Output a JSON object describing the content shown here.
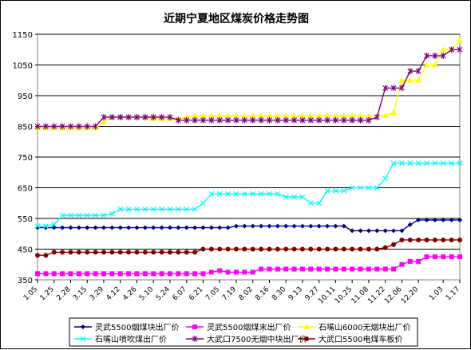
{
  "chart_data": {
    "type": "line",
    "title": "近期宁夏地区煤炭价格走势图",
    "ylim": [
      350,
      1150
    ],
    "yticks": [
      350,
      450,
      550,
      650,
      750,
      850,
      950,
      1050,
      1150
    ],
    "grid": true,
    "legend_position": "bottom",
    "x": [
      "1.05",
      "1.15",
      "1.25",
      "2.05",
      "2.28",
      "3.08",
      "3.15",
      "3.22",
      "3.29",
      "4.05",
      "4.12",
      "4.19",
      "4.26",
      "5.03",
      "5.10",
      "5.17",
      "5.24",
      "5.31",
      "6.07",
      "6.14",
      "6.21",
      "6.28",
      "7.05",
      "7.12",
      "7.19",
      "7.26",
      "8.02",
      "8.09",
      "8.16",
      "8.23",
      "8.30",
      "9.06",
      "9.13",
      "9.20",
      "9.27",
      "10.04",
      "10.11",
      "10.18",
      "10.25",
      "11.01",
      "11.08",
      "11.15",
      "11.22",
      "11.29",
      "12.06",
      "12.13",
      "12.20",
      "12.27",
      "12.30",
      "1.03",
      "1.10",
      "1.17"
    ],
    "xtick_labels": [
      "1.05",
      "1.25",
      "2.28",
      "3.15",
      "3.29",
      "4.12",
      "4.26",
      "5.10",
      "5.24",
      "6.07",
      "6.21",
      "7.05",
      "7.19",
      "8.02",
      "8.16",
      "8.30",
      "9.13",
      "9.27",
      "10.11",
      "10.25",
      "11.08",
      "11.22",
      "12.06",
      "12.20",
      "1.03",
      "1.17"
    ],
    "series": [
      {
        "name": "灵武5500烟煤块出厂价",
        "color": "#000080",
        "marker": "diamond",
        "values": [
          520,
          520,
          520,
          520,
          520,
          520,
          520,
          520,
          520,
          520,
          520,
          520,
          520,
          520,
          520,
          520,
          520,
          520,
          520,
          520,
          520,
          520,
          520,
          520,
          525,
          525,
          525,
          525,
          525,
          525,
          525,
          525,
          525,
          525,
          525,
          525,
          525,
          525,
          510,
          510,
          510,
          510,
          510,
          510,
          510,
          530,
          545,
          545,
          545,
          545,
          545,
          545
        ]
      },
      {
        "name": "灵武5500烟煤末出厂价",
        "color": "#ff00ff",
        "marker": "square",
        "values": [
          370,
          370,
          370,
          370,
          370,
          370,
          370,
          370,
          370,
          370,
          370,
          370,
          370,
          370,
          370,
          370,
          370,
          370,
          370,
          370,
          370,
          375,
          380,
          375,
          375,
          375,
          375,
          385,
          385,
          385,
          385,
          385,
          385,
          385,
          385,
          385,
          385,
          385,
          385,
          385,
          385,
          385,
          385,
          385,
          400,
          410,
          410,
          425,
          425,
          425,
          425,
          425
        ]
      },
      {
        "name": "石嘴山6000无烟块出厂价",
        "color": "#ffff00",
        "marker": "triangle",
        "values": [
          845,
          845,
          845,
          845,
          845,
          845,
          845,
          845,
          865,
          880,
          880,
          880,
          880,
          880,
          875,
          875,
          875,
          875,
          880,
          885,
          885,
          885,
          885,
          885,
          885,
          885,
          885,
          885,
          885,
          885,
          885,
          885,
          885,
          885,
          885,
          885,
          885,
          885,
          885,
          885,
          885,
          885,
          885,
          895,
          1000,
          1000,
          1000,
          1050,
          1050,
          1100,
          1100,
          1130
        ]
      },
      {
        "name": "石嘴山喷吹煤出厂价",
        "color": "#00ffff",
        "marker": "cross",
        "values": [
          525,
          525,
          530,
          560,
          560,
          560,
          560,
          560,
          560,
          565,
          580,
          580,
          580,
          580,
          580,
          580,
          580,
          580,
          580,
          580,
          600,
          630,
          630,
          630,
          630,
          630,
          630,
          630,
          630,
          630,
          620,
          620,
          620,
          600,
          600,
          640,
          640,
          640,
          650,
          650,
          650,
          650,
          680,
          730,
          730,
          730,
          730,
          730,
          730,
          730,
          730,
          730
        ]
      },
      {
        "name": "大武口7500无烟中块出厂价",
        "color": "#800080",
        "marker": "star",
        "values": [
          850,
          850,
          850,
          850,
          850,
          850,
          850,
          850,
          880,
          880,
          880,
          880,
          880,
          880,
          880,
          880,
          880,
          870,
          870,
          870,
          870,
          870,
          870,
          870,
          870,
          870,
          870,
          870,
          870,
          870,
          870,
          870,
          870,
          870,
          870,
          870,
          870,
          870,
          870,
          870,
          870,
          880,
          975,
          975,
          975,
          1030,
          1030,
          1080,
          1080,
          1080,
          1100,
          1100
        ]
      },
      {
        "name": "大武口5500电煤车板价",
        "color": "#800000",
        "marker": "circle",
        "values": [
          430,
          430,
          440,
          440,
          440,
          440,
          440,
          440,
          440,
          440,
          440,
          440,
          440,
          440,
          440,
          440,
          440,
          440,
          440,
          440,
          450,
          450,
          450,
          450,
          450,
          450,
          450,
          450,
          450,
          450,
          450,
          450,
          450,
          450,
          450,
          450,
          450,
          450,
          450,
          450,
          450,
          450,
          455,
          465,
          480,
          480,
          480,
          480,
          480,
          480,
          480,
          480
        ]
      }
    ]
  }
}
